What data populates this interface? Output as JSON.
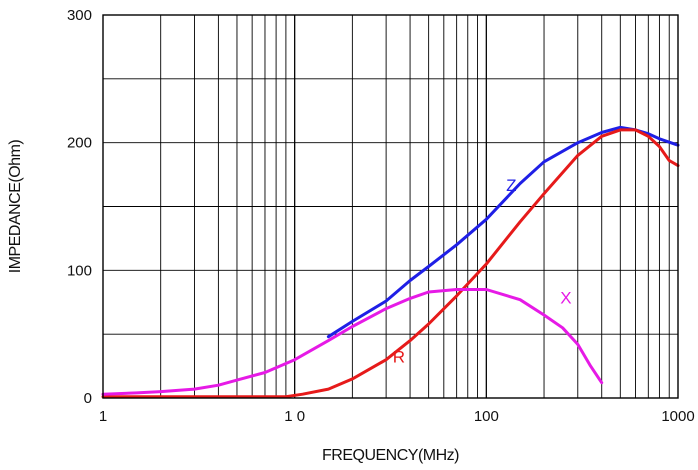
{
  "chart_data": {
    "type": "line",
    "title": "",
    "xlabel": "FREQUENCY(MHz)",
    "ylabel": "IMPEDANCE(Ohm)",
    "xscale": "log",
    "xlim": [
      1,
      1000
    ],
    "ylim": [
      0,
      300
    ],
    "grid": true,
    "x_ticks": [
      1,
      10,
      100,
      1000
    ],
    "x_tick_labels": [
      "1",
      "1 0",
      "100",
      "1000"
    ],
    "y_ticks": [
      0,
      100,
      200,
      300
    ],
    "y_tick_labels": [
      "0",
      "100",
      "200",
      "300"
    ],
    "series": [
      {
        "name": "Z",
        "color": "#1f1fe6",
        "x": [
          15,
          20,
          30,
          40,
          50,
          70,
          100,
          150,
          200,
          300,
          400,
          500,
          600,
          700,
          800,
          1000
        ],
        "y": [
          48,
          60,
          76,
          92,
          103,
          120,
          140,
          168,
          185,
          200,
          208,
          212,
          210,
          207,
          203,
          198
        ]
      },
      {
        "name": "R",
        "color": "#e61a1a",
        "x": [
          1,
          5,
          9,
          11,
          15,
          20,
          30,
          40,
          50,
          70,
          100,
          150,
          200,
          300,
          400,
          500,
          600,
          700,
          800,
          900,
          1000
        ],
        "y": [
          1,
          1,
          1,
          3,
          7,
          15,
          30,
          45,
          58,
          80,
          105,
          138,
          160,
          190,
          205,
          210,
          210,
          205,
          197,
          186,
          182
        ]
      },
      {
        "name": "X",
        "color": "#e61ae6",
        "x": [
          1,
          1.5,
          2,
          3,
          4,
          5,
          7,
          10,
          15,
          20,
          30,
          40,
          50,
          70,
          100,
          150,
          200,
          250,
          300,
          350,
          400
        ],
        "y": [
          3,
          4,
          5,
          7,
          10,
          14,
          20,
          30,
          45,
          56,
          70,
          78,
          83,
          85,
          85,
          77,
          65,
          55,
          42,
          25,
          12
        ]
      }
    ]
  }
}
